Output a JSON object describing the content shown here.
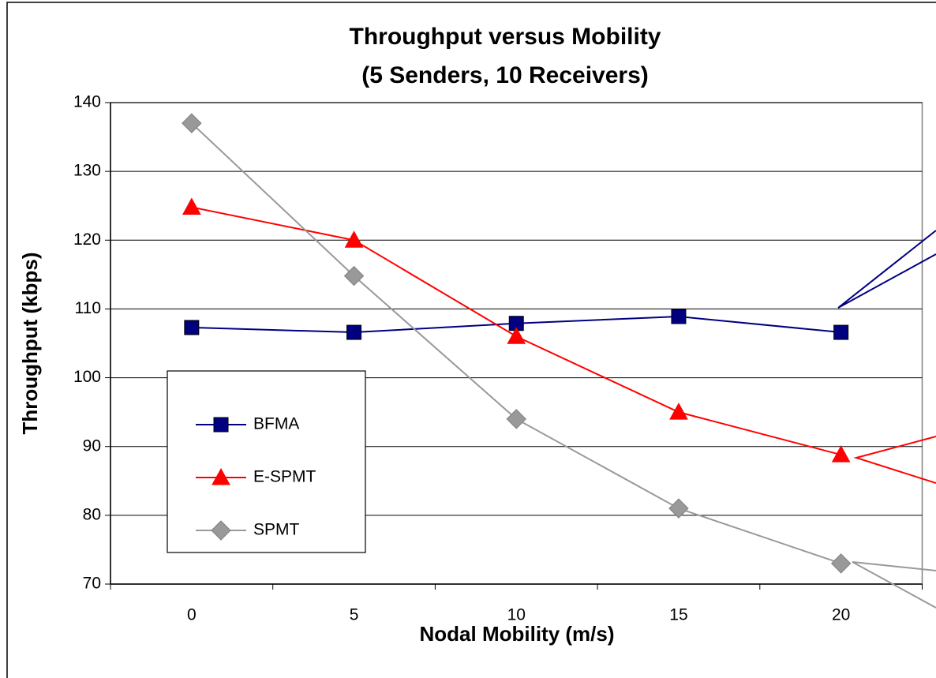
{
  "chart_data": {
    "type": "line",
    "title": [
      "Throughput versus Mobility",
      "(5 Senders, 10 Receivers)"
    ],
    "x_label": "Nodal Mobility (m/s)",
    "y_label": "Throughput (kbps)",
    "categories": [
      "0",
      "5",
      "10",
      "15",
      "20"
    ],
    "series": [
      {
        "name": "BFMA",
        "color": "#000080",
        "marker": "square",
        "values": [
          107.3,
          106.6,
          107.9,
          108.9,
          106.6
        ]
      },
      {
        "name": "E-SPMT",
        "color": "#ff0000",
        "marker": "triangle",
        "values": [
          124.8,
          120,
          106,
          95,
          88.8
        ]
      },
      {
        "name": "SPMT",
        "color": "#999999",
        "marker": "diamond",
        "values": [
          137,
          114.8,
          94,
          81,
          73
        ]
      }
    ],
    "ylim": [
      70,
      140
    ],
    "yticks": [
      70,
      80,
      90,
      100,
      110,
      120,
      130,
      140
    ],
    "grid": true
  }
}
